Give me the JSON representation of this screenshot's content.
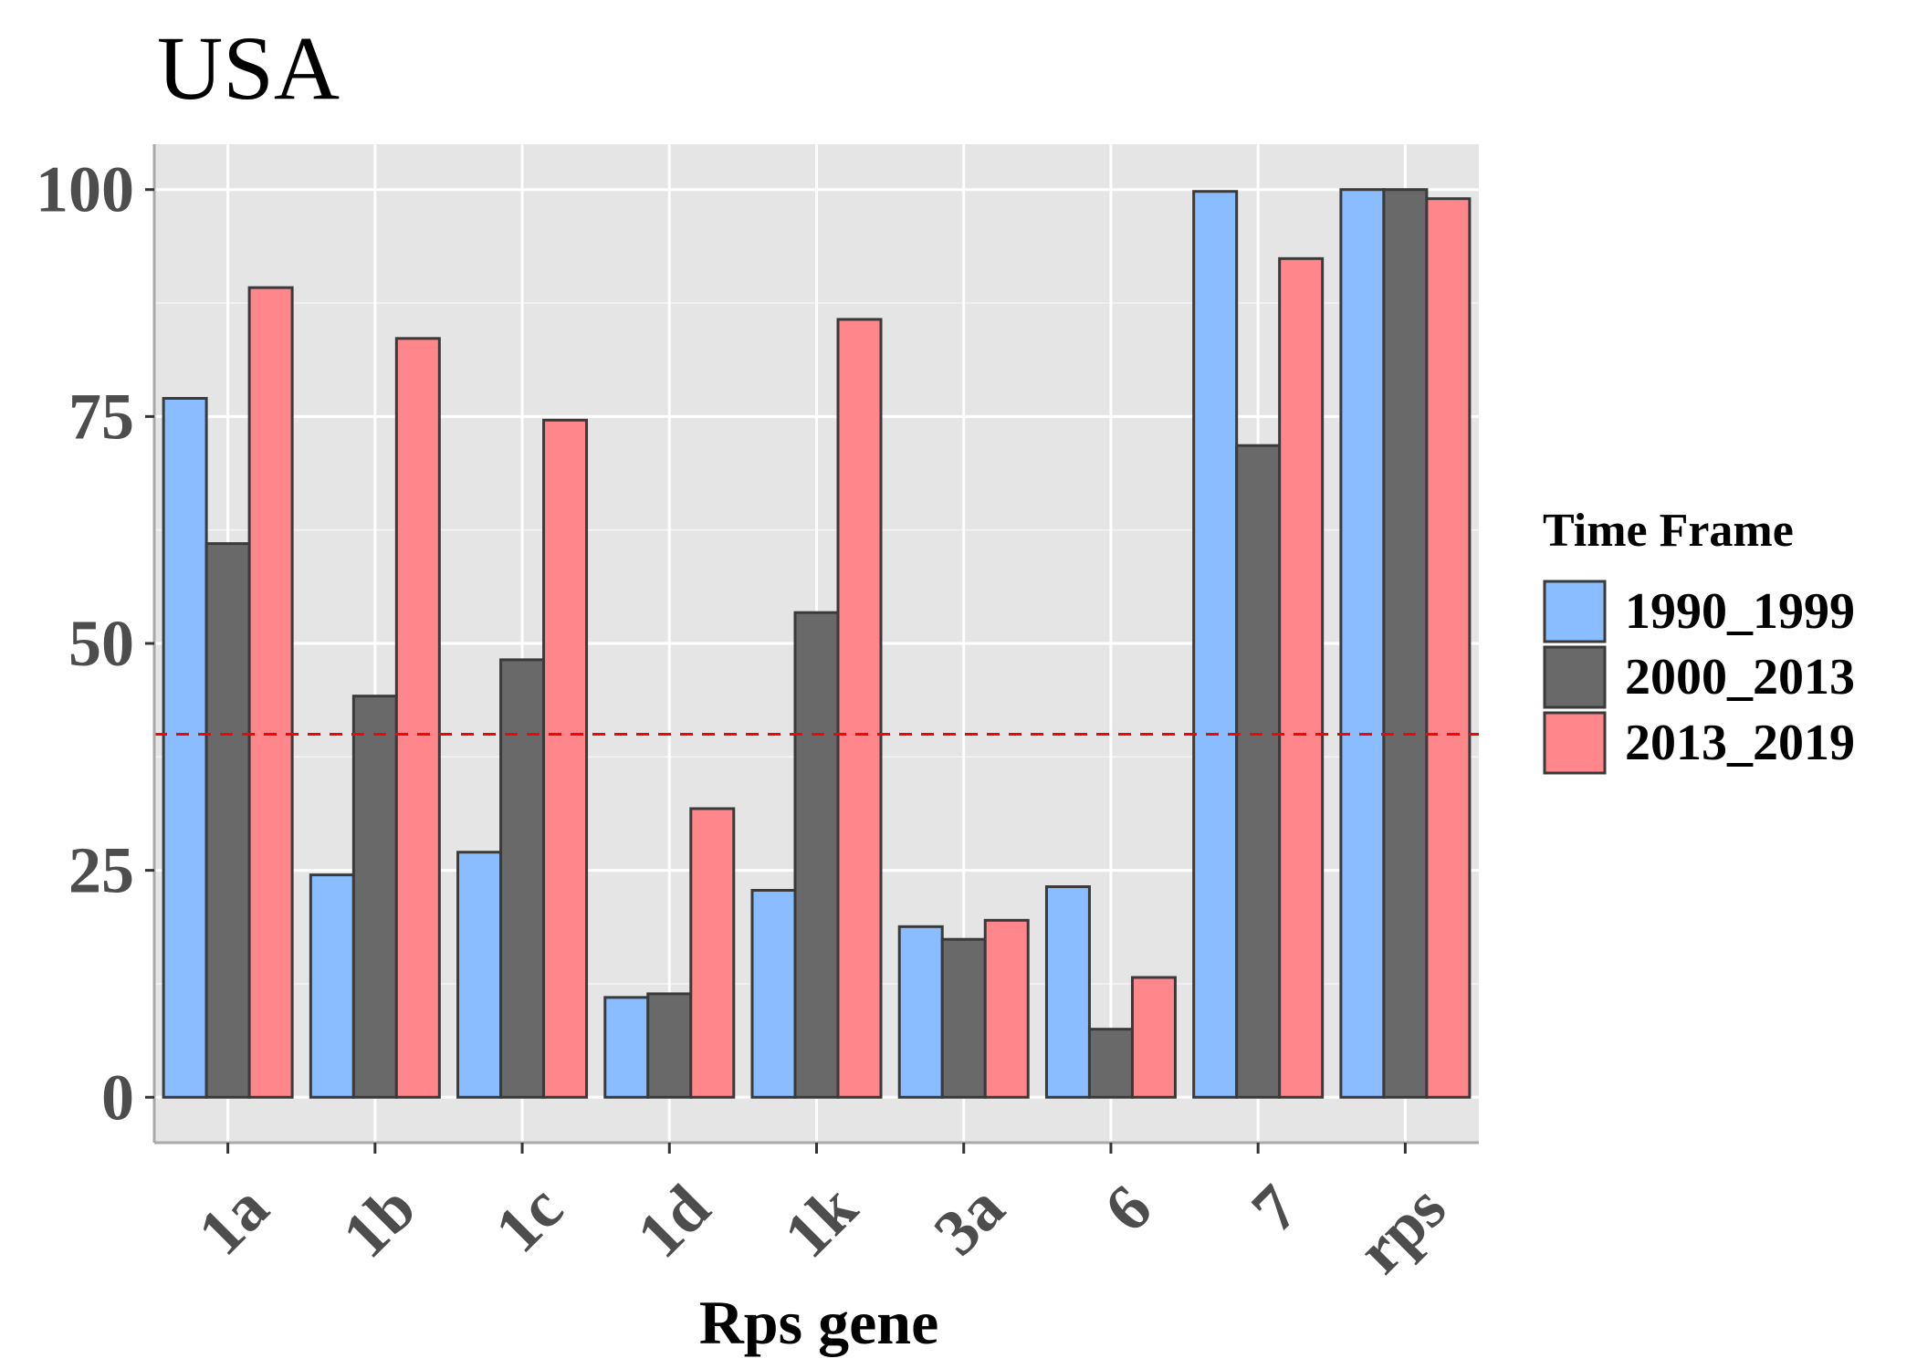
{
  "chart_data": {
    "type": "bar",
    "title": "USA",
    "xlabel": "Rps gene",
    "ylabel": "",
    "ylim": [
      -5,
      105
    ],
    "yticks": [
      0,
      25,
      50,
      75,
      100
    ],
    "categories": [
      "1a",
      "1b",
      "1c",
      "1d",
      "1k",
      "3a",
      "6",
      "7",
      "rps"
    ],
    "series": [
      {
        "name": "1990_1999",
        "color": "#8ABDFF",
        "values": [
          77,
          24.5,
          27,
          11,
          22.8,
          18.8,
          23.2,
          99.8,
          100
        ]
      },
      {
        "name": "2000_2013",
        "color": "#696969",
        "values": [
          61,
          44.2,
          48.2,
          11.4,
          53.4,
          17.4,
          7.5,
          71.8,
          100
        ]
      },
      {
        "name": "2013_2019",
        "color": "#FF868A",
        "values": [
          89.2,
          83.6,
          74.6,
          31.8,
          85.7,
          19.5,
          13.2,
          92.4,
          99
        ]
      }
    ],
    "reference_line": {
      "y": 40,
      "color": "#FF0000",
      "style": "dashed"
    },
    "legend": {
      "title": "Time Frame",
      "position": "right"
    },
    "grid": true,
    "panel_background": "#E5E5E5",
    "bar_outline": "#3A3A3A"
  }
}
